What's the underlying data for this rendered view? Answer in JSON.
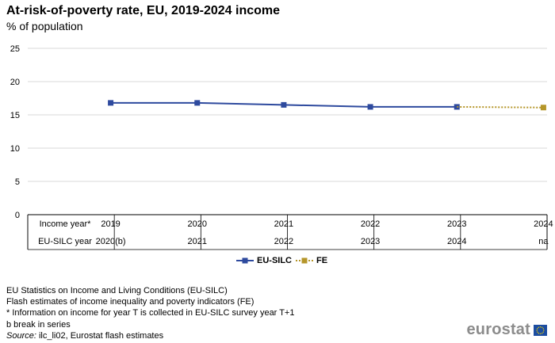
{
  "title": "At-risk-of-poverty rate, EU, 2019-2024 income",
  "subtitle": "% of population",
  "chart_data": {
    "type": "line",
    "yticks": [
      0,
      5,
      10,
      15,
      20,
      25
    ],
    "ylim": [
      0,
      25
    ],
    "categories": [
      "2019",
      "2020",
      "2021",
      "2022",
      "2023",
      "2024"
    ],
    "series": [
      {
        "name": "EU-SILC",
        "color": "#2e4a9e",
        "style": "solid",
        "marker": "square",
        "values": [
          16.8,
          16.8,
          16.5,
          16.2,
          16.2,
          null
        ]
      },
      {
        "name": "FE",
        "color": "#b5962a",
        "style": "dotted",
        "marker": "square",
        "values": [
          null,
          null,
          null,
          null,
          16.2,
          16.1
        ]
      }
    ],
    "table": {
      "rows": [
        {
          "label": "Income year*",
          "cells": [
            "2019",
            "2020",
            "2021",
            "2022",
            "2023",
            "2024"
          ]
        },
        {
          "label": "EU-SILC year",
          "cells": [
            "2020(b)",
            "2021",
            "2022",
            "2023",
            "2024",
            "na"
          ]
        }
      ]
    },
    "grid": true,
    "legend": "bottom"
  },
  "notes": [
    "EU Statistics on Income and Living Conditions (EU-SILC)",
    "Flash estimates of income inequality and poverty indicators (FE)",
    "* Information on income for year T is collected in EU-SILC survey year T+1",
    "b break in series"
  ],
  "source": {
    "label": "Source:",
    "text": "ilc_li02, Eurostat flash estimates"
  },
  "logo": {
    "text": "eurostat"
  }
}
